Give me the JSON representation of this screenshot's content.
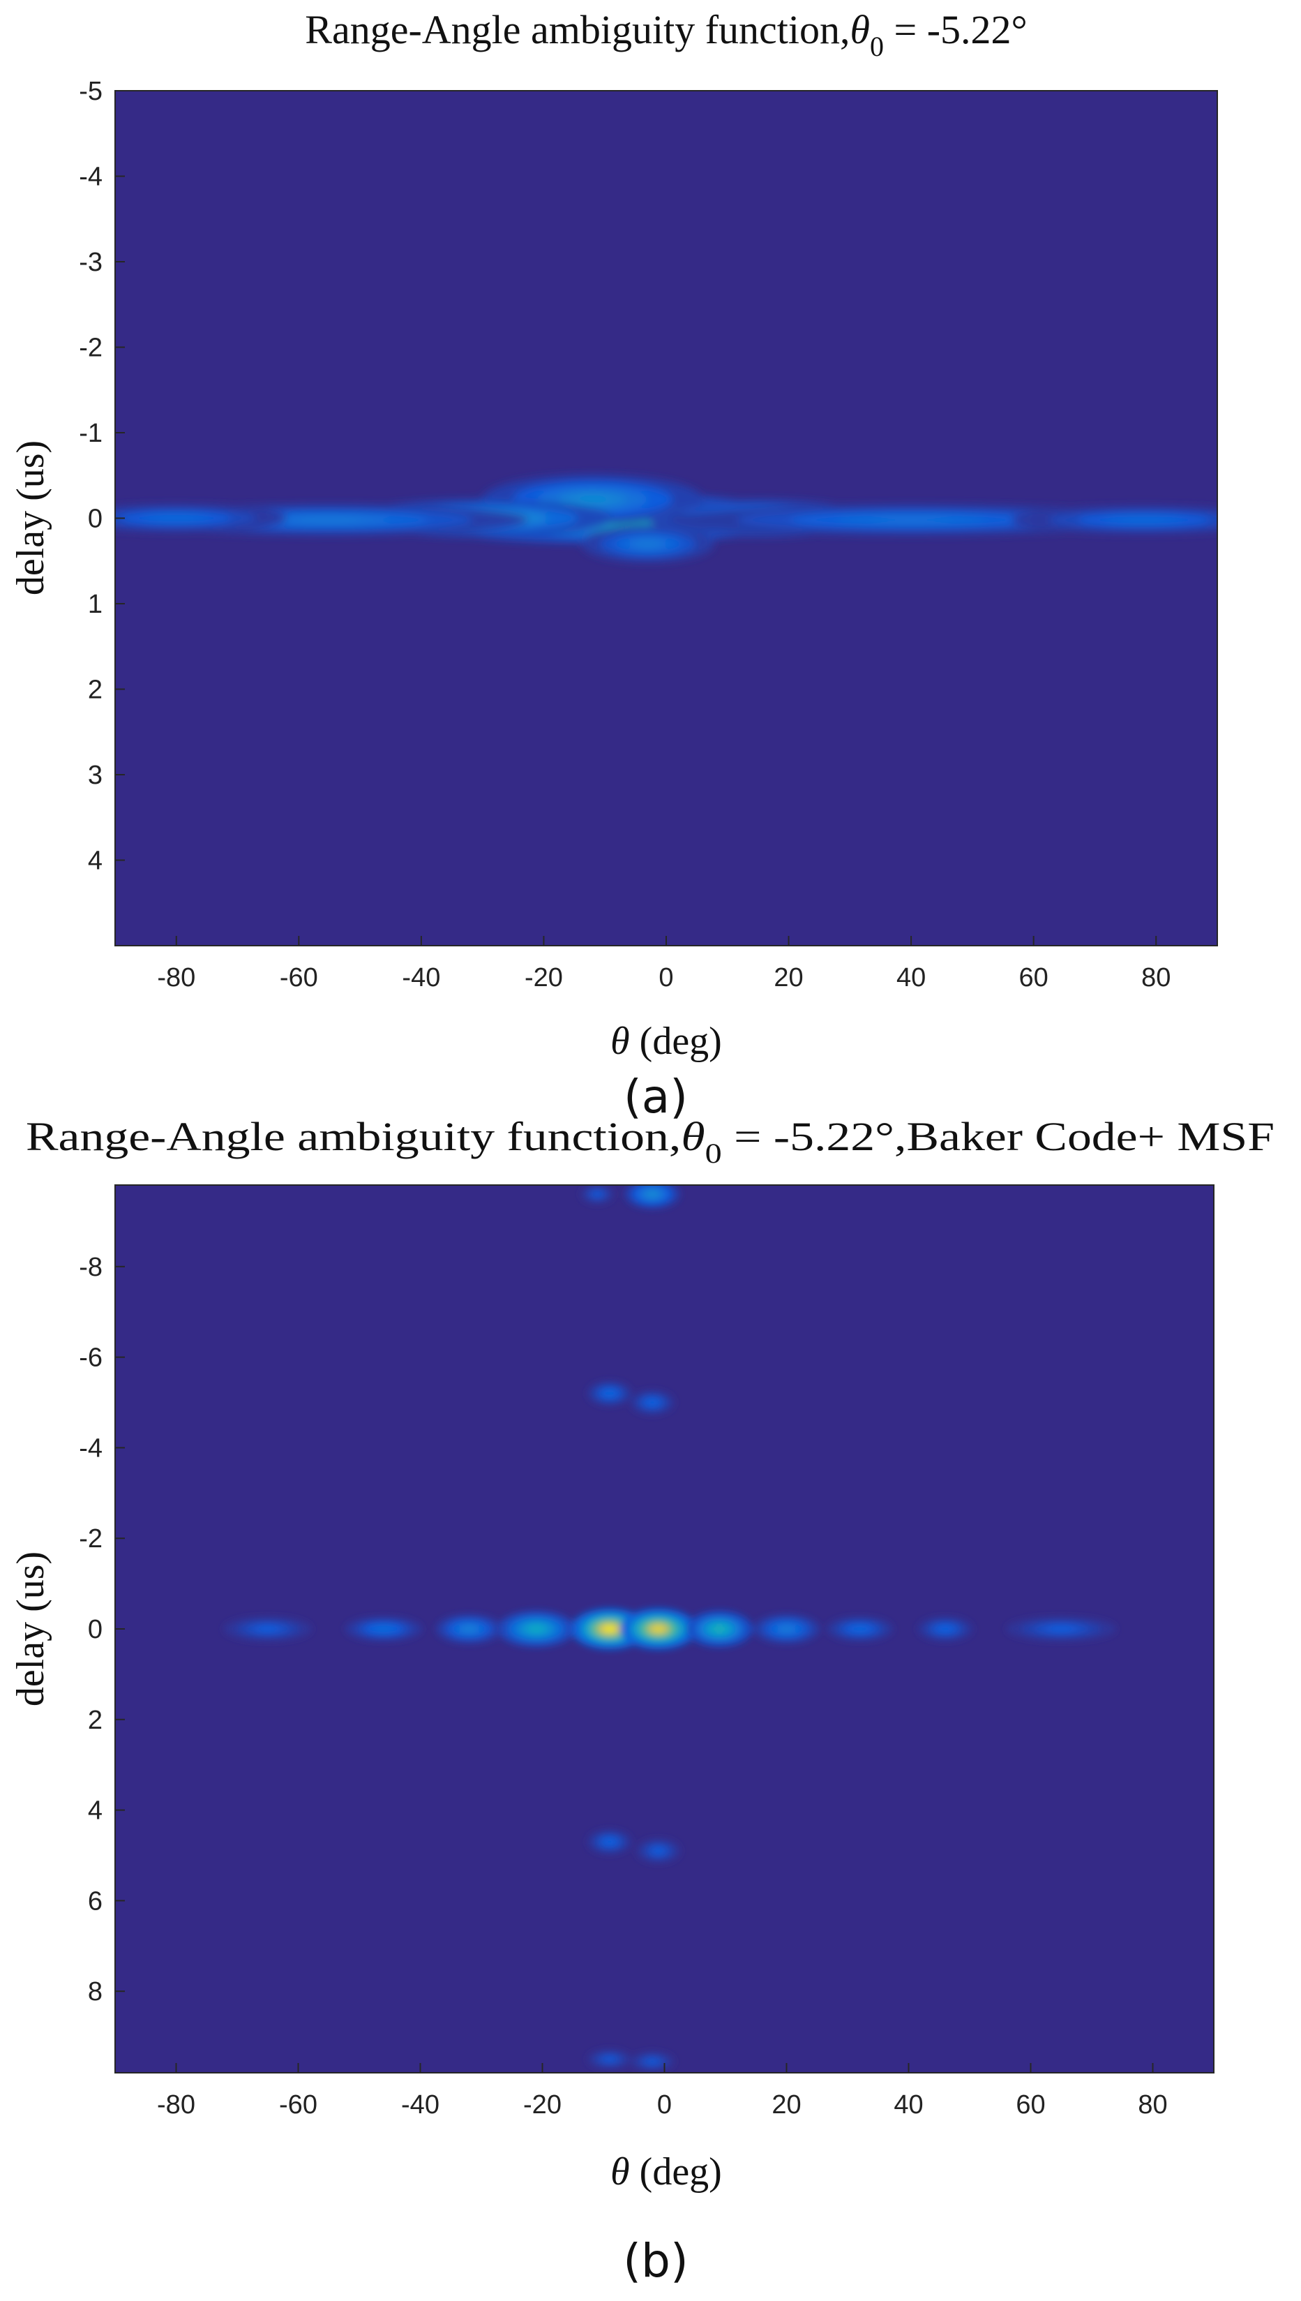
{
  "chart_data": [
    {
      "type": "heatmap",
      "panel_label": "(a)",
      "title_prefix": "Range-Angle ambiguity function,",
      "title_symbol": "θ",
      "title_subscript": "0",
      "title_suffix": " = -5.22°",
      "xlabel_symbol": "θ",
      "xlabel_text": " (deg)",
      "ylabel": "delay (us)",
      "xlim": [
        -90,
        90
      ],
      "ylim": [
        5,
        -5
      ],
      "y_reversed": true,
      "xticks": [
        -80,
        -60,
        -40,
        -20,
        0,
        20,
        40,
        60,
        80
      ],
      "yticks": [
        -5,
        -4,
        -3,
        -2,
        -1,
        0,
        1,
        2,
        3,
        4
      ],
      "colormap": "parula",
      "background_color": "#352a87",
      "features": [
        {
          "theta": -4,
          "delay": 0,
          "sigma_theta": 9,
          "sigma_delay": 0.1,
          "intensity": 1.0
        },
        {
          "theta": -10,
          "delay": 0,
          "sigma_theta": 18,
          "sigma_delay": 0.16,
          "intensity": 0.6
        },
        {
          "theta": -12,
          "delay": -0.22,
          "sigma_theta": 10,
          "sigma_delay": 0.16,
          "intensity": 0.35
        },
        {
          "theta": -3,
          "delay": 0.3,
          "sigma_theta": 6,
          "sigma_delay": 0.12,
          "intensity": 0.28
        },
        {
          "theta": -30,
          "delay": 0,
          "sigma_theta": 12,
          "sigma_delay": 0.12,
          "intensity": 0.45
        },
        {
          "theta": 15,
          "delay": 0,
          "sigma_theta": 10,
          "sigma_delay": 0.12,
          "intensity": 0.4
        },
        {
          "theta": -55,
          "delay": 0.02,
          "sigma_theta": 18,
          "sigma_delay": 0.1,
          "intensity": 0.28
        },
        {
          "theta": 40,
          "delay": 0.02,
          "sigma_theta": 22,
          "sigma_delay": 0.1,
          "intensity": 0.25
        },
        {
          "theta": -80,
          "delay": 0,
          "sigma_theta": 10,
          "sigma_delay": 0.09,
          "intensity": 0.22
        },
        {
          "theta": 78,
          "delay": 0.02,
          "sigma_theta": 12,
          "sigma_delay": 0.09,
          "intensity": 0.22
        }
      ]
    },
    {
      "type": "heatmap",
      "panel_label": "(b)",
      "title_prefix": "Range-Angle ambiguity function,",
      "title_symbol": "θ",
      "title_subscript": "0",
      "title_suffix": " = -5.22°,Baker Code+ MSF",
      "xlabel_symbol": "θ",
      "xlabel_text": " (deg)",
      "ylabel": "delay (us)",
      "xlim": [
        -90,
        90
      ],
      "ylim": [
        9.8,
        -9.8
      ],
      "y_reversed": true,
      "xticks": [
        -80,
        -60,
        -40,
        -20,
        0,
        20,
        40,
        60,
        80
      ],
      "yticks": [
        -8,
        -6,
        -4,
        -2,
        0,
        2,
        4,
        6,
        8
      ],
      "colormap": "parula",
      "background_color": "#352a87",
      "features": [
        {
          "theta": -9,
          "delay": 0,
          "sigma_theta": 3.5,
          "sigma_delay": 0.25,
          "intensity": 1.0
        },
        {
          "theta": -1,
          "delay": 0,
          "sigma_theta": 3.5,
          "sigma_delay": 0.25,
          "intensity": 0.95
        },
        {
          "theta": 9,
          "delay": 0,
          "sigma_theta": 3,
          "sigma_delay": 0.22,
          "intensity": 0.55
        },
        {
          "theta": -21,
          "delay": 0,
          "sigma_theta": 3.5,
          "sigma_delay": 0.22,
          "intensity": 0.5
        },
        {
          "theta": -32,
          "delay": 0,
          "sigma_theta": 3,
          "sigma_delay": 0.18,
          "intensity": 0.3
        },
        {
          "theta": 20,
          "delay": 0,
          "sigma_theta": 3,
          "sigma_delay": 0.18,
          "intensity": 0.28
        },
        {
          "theta": -46,
          "delay": 0,
          "sigma_theta": 3.5,
          "sigma_delay": 0.15,
          "intensity": 0.22
        },
        {
          "theta": 32,
          "delay": 0,
          "sigma_theta": 3,
          "sigma_delay": 0.15,
          "intensity": 0.2
        },
        {
          "theta": 46,
          "delay": 0,
          "sigma_theta": 2.5,
          "sigma_delay": 0.15,
          "intensity": 0.18
        },
        {
          "theta": -65,
          "delay": 0,
          "sigma_theta": 4,
          "sigma_delay": 0.15,
          "intensity": 0.16
        },
        {
          "theta": 65,
          "delay": 0,
          "sigma_theta": 5,
          "sigma_delay": 0.15,
          "intensity": 0.16
        },
        {
          "theta": -2,
          "delay": -9.6,
          "sigma_theta": 2.5,
          "sigma_delay": 0.18,
          "intensity": 0.35
        },
        {
          "theta": -11,
          "delay": -9.6,
          "sigma_theta": 1.5,
          "sigma_delay": 0.12,
          "intensity": 0.15
        },
        {
          "theta": -9,
          "delay": -5.2,
          "sigma_theta": 2,
          "sigma_delay": 0.15,
          "intensity": 0.2
        },
        {
          "theta": -2,
          "delay": -5.0,
          "sigma_theta": 2,
          "sigma_delay": 0.15,
          "intensity": 0.18
        },
        {
          "theta": -9,
          "delay": 4.7,
          "sigma_theta": 2,
          "sigma_delay": 0.15,
          "intensity": 0.18
        },
        {
          "theta": -1,
          "delay": 4.9,
          "sigma_theta": 2,
          "sigma_delay": 0.15,
          "intensity": 0.16
        },
        {
          "theta": -9,
          "delay": 9.5,
          "sigma_theta": 2,
          "sigma_delay": 0.12,
          "intensity": 0.15
        },
        {
          "theta": -2,
          "delay": 9.55,
          "sigma_theta": 2,
          "sigma_delay": 0.12,
          "intensity": 0.15
        }
      ]
    }
  ]
}
